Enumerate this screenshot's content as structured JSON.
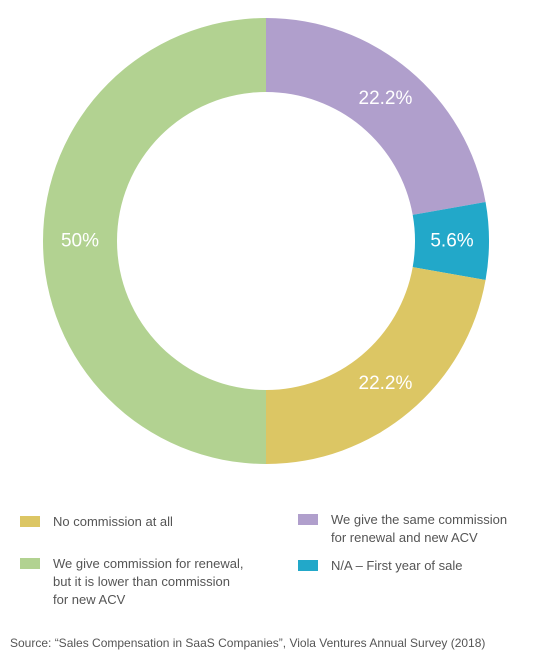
{
  "chart_data": {
    "type": "pie",
    "donut": true,
    "slices": [
      {
        "label": "We give the same commission for renewal and new ACV",
        "value": 22.2,
        "value_label": "22.2%",
        "color": "#b09fcc"
      },
      {
        "label": "N/A – First year of sale",
        "value": 5.6,
        "value_label": "5.6%",
        "color": "#22a8c9"
      },
      {
        "label": "No commission at all",
        "value": 22.2,
        "value_label": "22.2%",
        "color": "#dcc664"
      },
      {
        "label": "We give commission for renewal, but it is lower than commission for new ACV",
        "value": 50,
        "value_label": "50%",
        "color": "#b2d291"
      }
    ],
    "legend": [
      {
        "label": "No commission at all",
        "color": "#dcc664"
      },
      {
        "label": "We give the same commission\nfor renewal and new ACV",
        "color": "#b09fcc"
      },
      {
        "label": "We give commission for renewal,\nbut it is lower than commission\nfor new ACV",
        "color": "#b2d291"
      },
      {
        "label": "N/A – First year of sale",
        "color": "#22a8c9"
      }
    ],
    "legend_placement": "bottom"
  },
  "source": "Source: “Sales Compensation in SaaS Companies”, Viola Ventures Annual Survey (2018)"
}
